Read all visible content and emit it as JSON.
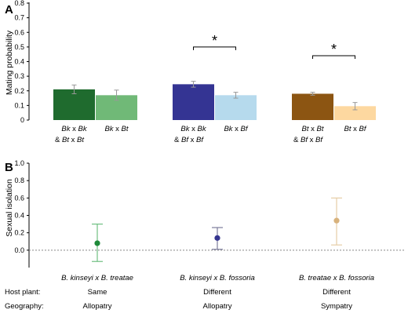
{
  "chart_data": [
    {
      "type": "bar",
      "panel_label": "A",
      "ylabel": "Mating probability",
      "ylim": [
        0,
        0.8
      ],
      "yticks": [
        "0",
        "0.1",
        "0.2",
        "0.3",
        "0.4",
        "0.5",
        "0.6",
        "0.7",
        "0.8"
      ],
      "bars": [
        {
          "value": 0.21,
          "err": 0.03,
          "color": "#1f6b2e"
        },
        {
          "value": 0.17,
          "err": 0.035,
          "color": "#70b977"
        },
        {
          "value": 0.245,
          "err": 0.02,
          "color": "#343493"
        },
        {
          "value": 0.17,
          "err": 0.02,
          "color": "#b6daed"
        },
        {
          "value": 0.18,
          "err": 0.01,
          "color": "#8c5512"
        },
        {
          "value": 0.095,
          "err": 0.025,
          "color": "#fdd8a0"
        }
      ],
      "categories": [
        {
          "line1": {
            "a": "Bk",
            "x": "x",
            "b": "Bk"
          },
          "line2": {
            "amp": "&",
            "a": "Bt",
            "x": "x",
            "b": "Bt"
          }
        },
        {
          "line1": {
            "a": "Bk",
            "x": "x",
            "b": "Bt"
          }
        },
        {
          "line1": {
            "a": "Bk",
            "x": "x",
            "b": "Bk"
          },
          "line2": {
            "amp": "&",
            "a": "Bf",
            "x": "x",
            "b": "Bf"
          }
        },
        {
          "line1": {
            "a": "Bk",
            "x": "x",
            "b": "Bf"
          }
        },
        {
          "line1": {
            "a": "Bt",
            "x": "x",
            "b": "Bt"
          },
          "line2": {
            "amp": "&",
            "a": "Bf",
            "x": "x",
            "b": "Bf"
          }
        },
        {
          "line1": {
            "a": "Bt",
            "x": "x",
            "b": "Bf"
          }
        }
      ],
      "significance": [
        {
          "from": 2,
          "to": 3,
          "label": "*",
          "y": 0.5
        },
        {
          "from": 4,
          "to": 5,
          "label": "*",
          "y": 0.44
        }
      ]
    },
    {
      "type": "scatter",
      "panel_label": "B",
      "ylabel": "Sexual isolation",
      "ylim": [
        -0.2,
        1.0
      ],
      "yticks": [
        "1.0",
        "0.8",
        "0.6",
        "0.4",
        "0.2",
        "0.0"
      ],
      "reference_line": 0.0,
      "points": [
        {
          "category": "B. kinseyi x B. treatae",
          "value": 0.08,
          "low": -0.13,
          "high": 0.3,
          "color": "#1f8a3a",
          "errcolor": "#6fbf82"
        },
        {
          "category": "B. kinseyi x B. fossoria",
          "value": 0.14,
          "low": 0.01,
          "high": 0.26,
          "color": "#35358f",
          "errcolor": "#7b7b9b"
        },
        {
          "category": "B. treatae x B. fossoria",
          "value": 0.34,
          "low": 0.06,
          "high": 0.6,
          "color": "#d8b27c",
          "errcolor": "#e6cda6"
        }
      ],
      "footer": {
        "host_label": "Host plant:",
        "geo_label": "Geography:",
        "host": [
          "Same",
          "Different",
          "Different"
        ],
        "geography": [
          "Allopatry",
          "Allopatry",
          "Sympatry"
        ]
      }
    }
  ]
}
